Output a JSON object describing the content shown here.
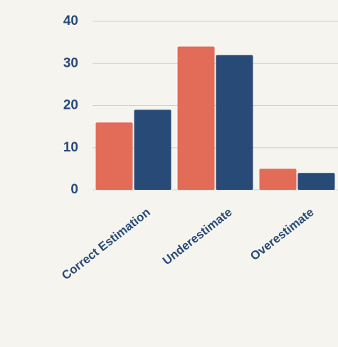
{
  "chart_data": {
    "type": "bar",
    "categories": [
      "Correct Estimation",
      "Underestimate",
      "Overestimate"
    ],
    "series": [
      {
        "color": "#e36c59",
        "values": [
          16,
          34,
          5
        ]
      },
      {
        "color": "#284a77",
        "values": [
          19,
          32,
          4
        ]
      }
    ],
    "ylim": [
      0,
      40
    ],
    "yticks": [
      0,
      10,
      20,
      30,
      40
    ],
    "grid": true
  }
}
